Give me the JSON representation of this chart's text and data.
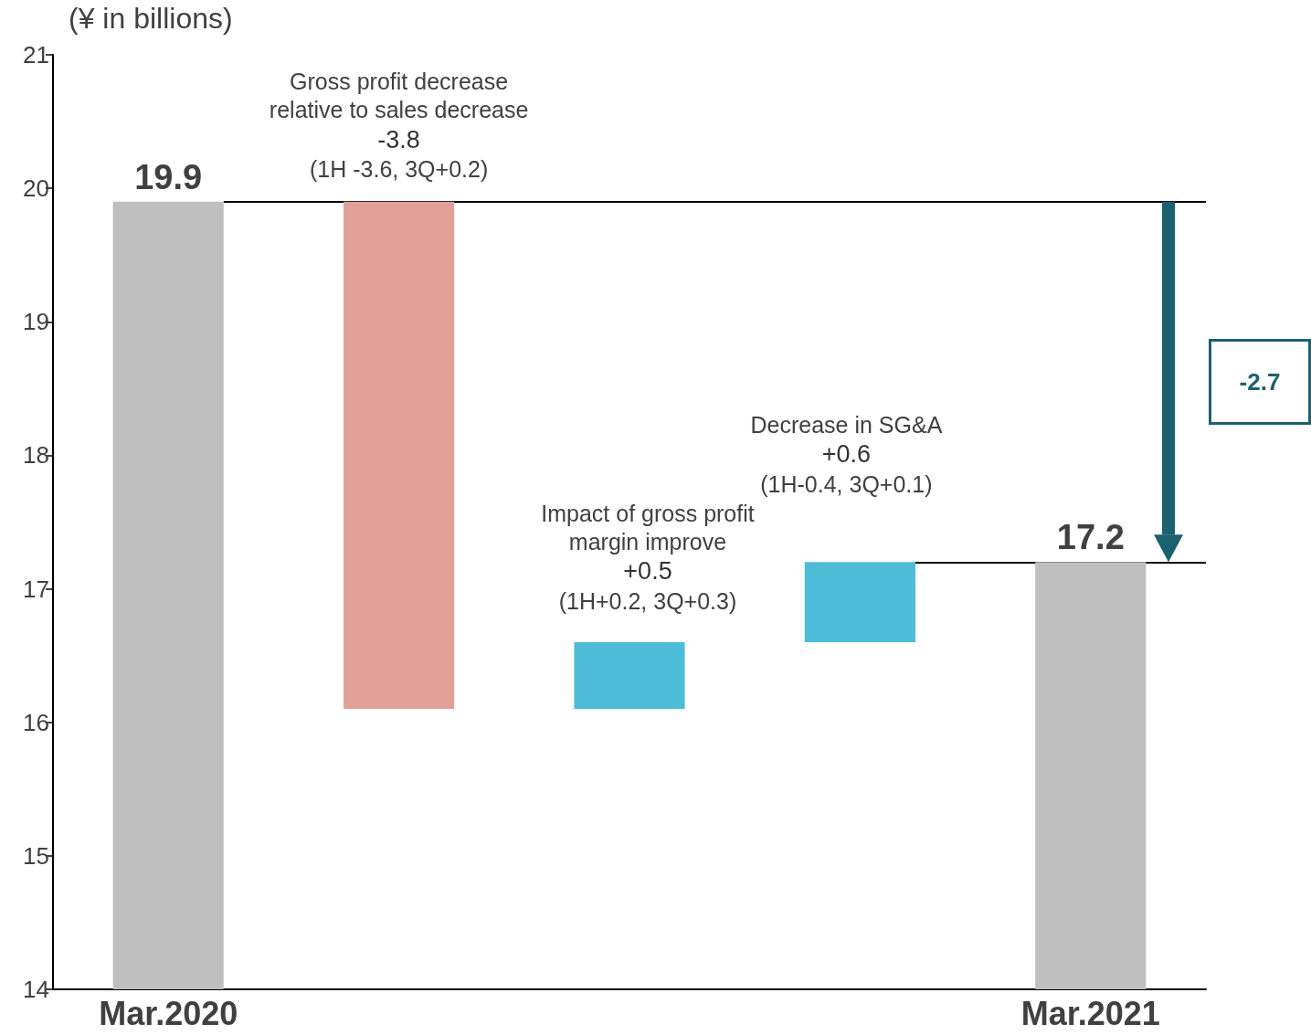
{
  "chart_data": {
    "type": "bar",
    "ylabel": "(¥ in billions)",
    "categories": [
      "Mar.2020",
      null,
      null,
      null,
      "Mar.2021"
    ],
    "values": [
      19.9,
      -3.8,
      0.5,
      0.6,
      17.2
    ],
    "base": [
      null,
      19.9,
      16.1,
      16.6,
      null
    ],
    "colors": [
      "#bfbfbf",
      "#e0a199",
      "#4dbcd6",
      "#4dbcd6",
      "#bfbfbf"
    ],
    "value_labels": [
      "19.9",
      null,
      null,
      null,
      "17.2"
    ],
    "ylim": [
      14,
      21
    ],
    "yticks": [
      14,
      15,
      16,
      17,
      18,
      19,
      20,
      21
    ],
    "grid": false,
    "ref_lines": [
      {
        "axis": "y",
        "value": 19.9,
        "color": "#000000"
      },
      {
        "axis": "y",
        "value": 17.2,
        "color": "#000000"
      }
    ],
    "annotations": [
      "Gross profit decrease\nrelative to sales decrease\n-3.8\n(1H -3.6, 3Q+0.2)",
      "Impact of gross profit\nmargin improve\n+0.5\n(1H+0.2, 3Q+0.3)",
      "Decrease in SG&A\n+0.6\n(1H-0.4, 3Q+0.1)",
      "-2.7"
    ]
  }
}
